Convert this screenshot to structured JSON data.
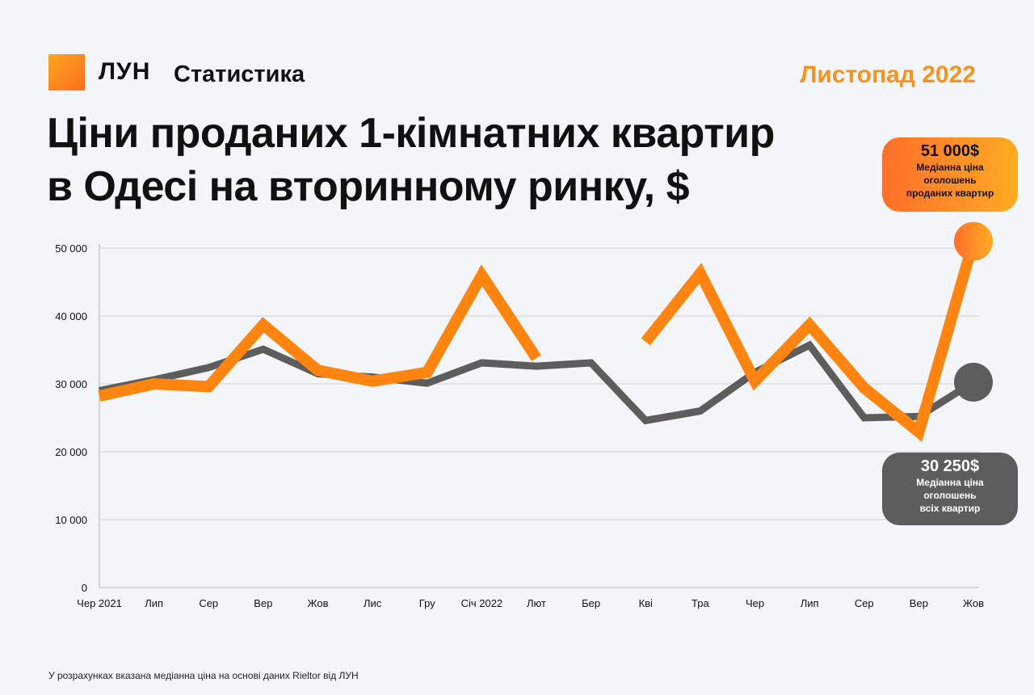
{
  "header": {
    "logo": "ЛУН",
    "logo_sub": "Статистика",
    "date": "Листопад 2022",
    "title_line1": "Ціни проданих 1-кімнатних квартир",
    "title_line2": "в Одесі на вторинному ринку, $"
  },
  "footnote": "У розрахунках вказана медіанна ціна на основі даних Rieltor від ЛУН",
  "callouts": {
    "sold": {
      "value": "51 000$",
      "desc": [
        "Медіанна ціна",
        "оголошень",
        "проданих квартир"
      ]
    },
    "all": {
      "value": "30 250$",
      "desc": [
        "Медіанна ціна",
        "оголошень",
        "всіх квартир"
      ]
    }
  },
  "colors": {
    "sold": "#ff8410",
    "all": "#5d5d5d",
    "accent": "#f7931e"
  },
  "chart_data": {
    "type": "line",
    "categories": [
      "Чер 2021",
      "Лип",
      "Сер",
      "Вер",
      "Жов",
      "Лис",
      "Гру",
      "Січ 2022",
      "Лют",
      "Бер",
      "Кві",
      "Тра",
      "Чер",
      "Лип",
      "Сер",
      "Вер",
      "Жов"
    ],
    "ylim": [
      0,
      50000
    ],
    "yticks": [
      0,
      10000,
      20000,
      30000,
      40000,
      50000
    ],
    "ytick_labels": [
      "0",
      "10 000",
      "20 000",
      "30 000",
      "40 000",
      "50 000"
    ],
    "grid": true,
    "series": [
      {
        "key": "all",
        "values": [
          29000,
          30600,
          32400,
          35100,
          31500,
          31000,
          30100,
          33100,
          32600,
          33100,
          24600,
          26000,
          31700,
          35700,
          25000,
          25200,
          30250
        ]
      },
      {
        "key": "sold",
        "values": [
          28200,
          30000,
          29600,
          38700,
          32000,
          30400,
          31700,
          46000,
          33800,
          null,
          36200,
          46300,
          30400,
          38700,
          29400,
          22900,
          51000
        ]
      }
    ]
  }
}
